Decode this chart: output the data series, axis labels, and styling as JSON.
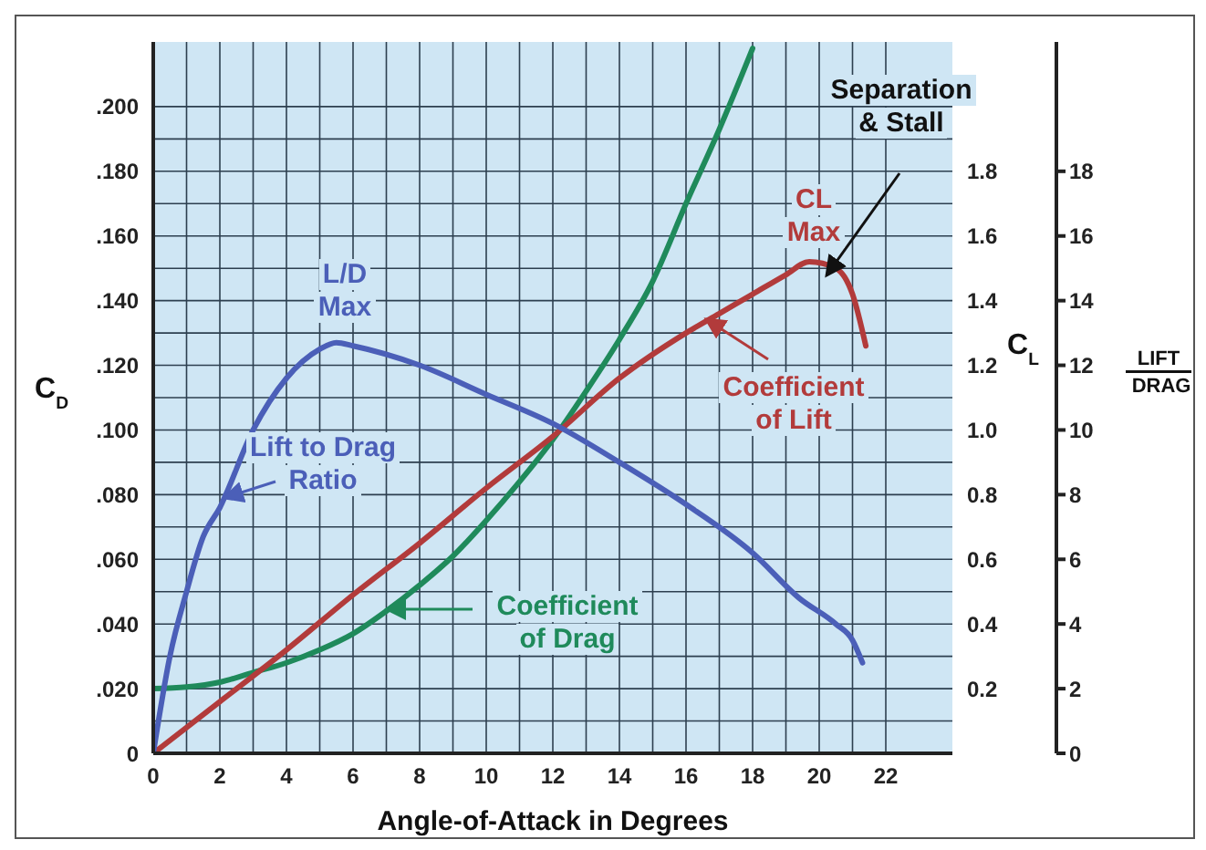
{
  "chart_data": {
    "type": "line",
    "xlabel": "Angle-of-Attack in Degrees",
    "ylabel": "C$_{D}$",
    "y2label": "C$_{L}$",
    "y3label": "LIFT DRAG",
    "xlim": [
      0,
      24
    ],
    "xticks": [
      0,
      2,
      4,
      6,
      8,
      10,
      12,
      14,
      16,
      18,
      20,
      22
    ],
    "ylim": [
      0,
      0.22
    ],
    "yticks": [
      0,
      {
        "value": 0.02,
        "label": ".020"
      },
      {
        "value": 0.04,
        "label": ".040"
      },
      {
        "value": 0.06,
        "label": ".060"
      },
      {
        "value": 0.08,
        "label": ".080"
      },
      {
        "value": 0.1,
        "label": ".100"
      },
      {
        "value": 0.12,
        "label": ".120"
      },
      {
        "value": 0.14,
        "label": ".140"
      },
      {
        "value": 0.16,
        "label": ".160"
      },
      {
        "value": 0.18,
        "label": ".180"
      },
      {
        "value": 0.2,
        "label": ".200"
      }
    ],
    "y2lim": [
      0,
      2.2
    ],
    "y2ticks": [
      0.2,
      0.4,
      0.6,
      0.8,
      {
        "value": 1.0,
        "label": "1.0"
      },
      1.2,
      1.4,
      1.6,
      1.8
    ],
    "y3lim": [
      0,
      22
    ],
    "y3ticks": [
      0,
      2,
      4,
      6,
      8,
      10,
      12,
      14,
      16,
      18
    ],
    "grid": true,
    "marker": "none",
    "line_style": "solid",
    "series": [
      {
        "color": "#1f8a5b",
        "axis": "y",
        "x": [
          0,
          1,
          2,
          3,
          4,
          5,
          6,
          7,
          8,
          9,
          10,
          11,
          12,
          13,
          14,
          15,
          16,
          17,
          18
        ],
        "values": [
          0.02,
          0.0205,
          0.022,
          0.025,
          0.028,
          0.032,
          0.037,
          0.044,
          0.052,
          0.061,
          0.072,
          0.084,
          0.097,
          0.112,
          0.128,
          0.146,
          0.17,
          0.193,
          0.218
        ]
      },
      {
        "color": "#b23b3b",
        "axis": "y2",
        "x": [
          0,
          2,
          4,
          6,
          8,
          10,
          12,
          14,
          16,
          17,
          18,
          19,
          19.7,
          20.5,
          21,
          21.4
        ],
        "values": [
          0,
          0.16,
          0.32,
          0.49,
          0.65,
          0.82,
          0.98,
          1.16,
          1.3,
          1.36,
          1.42,
          1.48,
          1.52,
          1.5,
          1.42,
          1.26
        ]
      },
      {
        "color": "#4b5fb8",
        "axis": "y3",
        "x": [
          0,
          0.5,
          1,
          1.5,
          2,
          3,
          4,
          5,
          5.5,
          6,
          8,
          10,
          12,
          14,
          16,
          18,
          19.4,
          20.5,
          21,
          21.3
        ],
        "values": [
          0,
          3,
          5,
          6.7,
          7.6,
          10,
          11.6,
          12.5,
          12.7,
          12.6,
          12,
          11.1,
          10.2,
          9,
          7.7,
          6.2,
          4.8,
          4,
          3.5,
          2.8
        ]
      }
    ],
    "annotations": [
      "L/D Max",
      "Lift to Drag Ratio",
      "Coefficient of Drag",
      "Coefficient of Lift",
      "CL Max",
      "Separation & Stall"
    ]
  }
}
